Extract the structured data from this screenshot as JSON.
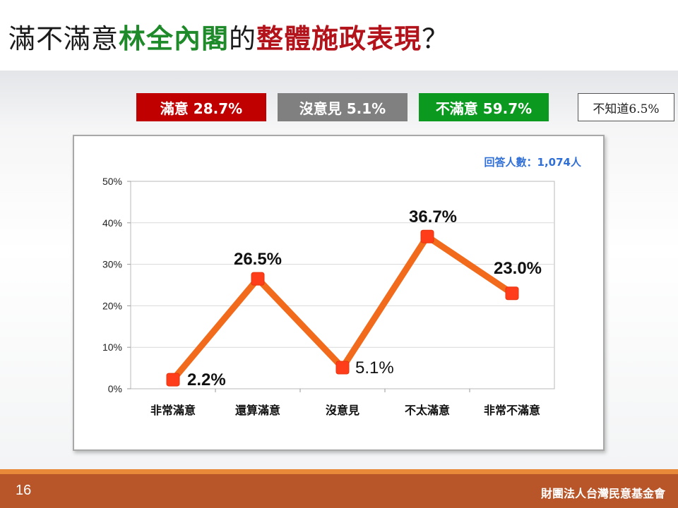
{
  "title": {
    "part1": "滿不滿意",
    "part2": "林全內閣",
    "part3": "的",
    "part4": "整體施政表現",
    "part5": "？"
  },
  "summary": {
    "satisfied": "滿意 28.7%",
    "neutral": "沒意見 5.1%",
    "dissatisfied": "不滿意 59.7%",
    "unknown": "不知道6.5%"
  },
  "colors": {
    "satisfied": "#c00000",
    "neutral": "#808080",
    "dissatisfied": "#0b9a1f",
    "line": "#f26a1b",
    "marker": "#ff3d1a",
    "respondents_text": "#2f6fd6"
  },
  "chart_data": {
    "type": "line",
    "categories": [
      "非常滿意",
      "還算滿意",
      "沒意見",
      "不太滿意",
      "非常不滿意"
    ],
    "values": [
      2.2,
      26.5,
      5.1,
      36.7,
      23.0
    ],
    "data_labels": [
      "2.2%",
      "26.5%",
      "5.1%",
      "36.7%",
      "23.0%"
    ],
    "y_ticks": [
      "0%",
      "10%",
      "20%",
      "30%",
      "40%",
      "50%"
    ],
    "ylim": [
      0,
      50
    ],
    "grid": true,
    "title": "",
    "xlabel": "",
    "ylabel": "",
    "respondents": "回答人數：1,074人"
  },
  "footer": {
    "page_number": "16",
    "organization": "財團法人台灣民意基金會"
  }
}
